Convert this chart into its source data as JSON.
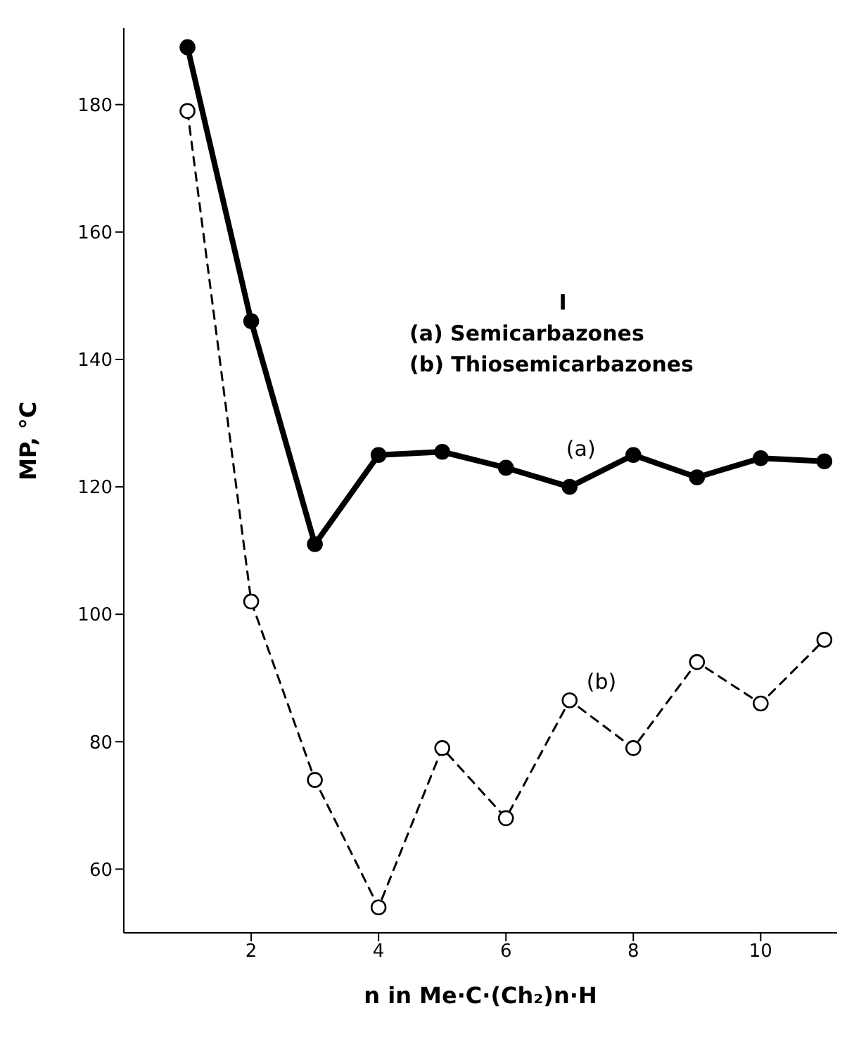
{
  "chart_data": {
    "type": "line",
    "xlabel": "n in Me·C·(Ch₂)n·H",
    "ylabel": "MP, °C",
    "annotations": [
      "I",
      "(a) Semicarbazones",
      "(b) Thiosemicarbazones"
    ],
    "x": [
      1,
      2,
      3,
      4,
      5,
      6,
      7,
      8,
      9,
      10,
      11
    ],
    "series": [
      {
        "name": "(a)",
        "color": "#000000",
        "line_style": "solid",
        "values": [
          189,
          146,
          111,
          125,
          125.5,
          123,
          120,
          125,
          121.5,
          124.5,
          124
        ]
      },
      {
        "name": "(b)",
        "color": "#000000",
        "line_style": "dashed",
        "values": [
          179,
          102,
          74,
          54,
          79,
          68,
          86.5,
          79,
          92.5,
          86,
          96
        ]
      }
    ],
    "xlim": [
      0,
      11.2
    ],
    "xticks": [
      2,
      4,
      6,
      8,
      10
    ],
    "ylim": [
      50,
      192
    ],
    "yticks": [
      60,
      80,
      100,
      120,
      140,
      160,
      180
    ],
    "grid": false,
    "legend": false,
    "marker": "circle"
  }
}
